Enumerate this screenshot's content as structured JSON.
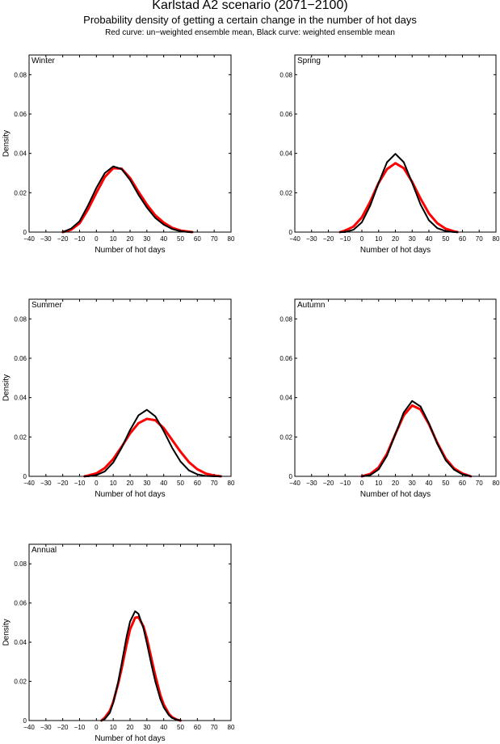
{
  "header": {
    "title": "Karlstad A2 scenario (2071−2100)",
    "subtitle": "Probability density of getting a certain change in the number of hot days",
    "legend_note": "Red curve: un−weighted ensemble mean, Black curve: weighted ensemble mean"
  },
  "colors": {
    "unweighted": "#ff0000",
    "weighted": "#000000"
  },
  "chart_data": [
    {
      "type": "line",
      "title": "Winter",
      "xlabel": "Number of hot days",
      "ylabel": "Density",
      "xlim": [
        -40,
        80
      ],
      "ylim": [
        0,
        0.09
      ],
      "xticks": [
        -40,
        -30,
        -20,
        -10,
        0,
        10,
        20,
        30,
        40,
        50,
        60,
        70,
        80
      ],
      "xtick_labels": [
        "−40",
        "−30",
        "−20",
        "−10",
        "0",
        "10",
        "20",
        "30",
        "40",
        "50",
        "60",
        "70",
        "80"
      ],
      "yticks": [
        0,
        0.02,
        0.04,
        0.06,
        0.08
      ],
      "ytick_labels": [
        "0",
        "0.02",
        "0.04",
        "0.06",
        "0.08"
      ],
      "show_ylabel": true,
      "x": [
        -20,
        -15,
        -10,
        -5,
        0,
        5,
        10,
        15,
        20,
        25,
        30,
        35,
        40,
        45,
        50,
        55,
        57
      ],
      "series": [
        {
          "name": "un-weighted ensemble mean",
          "color": "red",
          "values": [
            0.0,
            0.0012,
            0.0045,
            0.0115,
            0.02,
            0.028,
            0.0325,
            0.0322,
            0.0275,
            0.0205,
            0.014,
            0.0085,
            0.0048,
            0.0022,
            0.0008,
            0.0002,
            0.0
          ]
        },
        {
          "name": "weighted ensemble mean",
          "color": "black",
          "values": [
            0.0,
            0.0018,
            0.0055,
            0.0135,
            0.0225,
            0.03,
            0.0334,
            0.032,
            0.0265,
            0.019,
            0.0125,
            0.0072,
            0.0038,
            0.0016,
            0.0004,
            0.0,
            0.0
          ]
        }
      ]
    },
    {
      "type": "line",
      "title": "Spring",
      "xlabel": "Number of hot days",
      "ylabel": "",
      "xlim": [
        -40,
        80
      ],
      "ylim": [
        0,
        0.09
      ],
      "xticks": [
        -40,
        -30,
        -20,
        -10,
        0,
        10,
        20,
        30,
        40,
        50,
        60,
        70,
        80
      ],
      "xtick_labels": [
        "−40",
        "−30",
        "−20",
        "−10",
        "0",
        "10",
        "20",
        "30",
        "40",
        "50",
        "60",
        "70",
        "80"
      ],
      "yticks": [
        0,
        0.02,
        0.04,
        0.06,
        0.08
      ],
      "ytick_labels": [
        "0",
        "0.02",
        "0.04",
        "0.06",
        "0.08"
      ],
      "show_ylabel": false,
      "x": [
        -13,
        -10,
        -5,
        0,
        5,
        10,
        15,
        20,
        25,
        30,
        35,
        40,
        45,
        50,
        55,
        57
      ],
      "series": [
        {
          "name": "un-weighted ensemble mean",
          "color": "red",
          "values": [
            0.0,
            0.0008,
            0.0028,
            0.0075,
            0.0155,
            0.025,
            0.032,
            0.035,
            0.0325,
            0.0255,
            0.017,
            0.0095,
            0.0045,
            0.0017,
            0.0004,
            0.0
          ]
        },
        {
          "name": "weighted ensemble mean",
          "color": "black",
          "values": [
            0.0,
            0.0,
            0.0012,
            0.005,
            0.0135,
            0.025,
            0.0355,
            0.0398,
            0.0355,
            0.025,
            0.014,
            0.006,
            0.002,
            0.0005,
            0.0,
            0.0
          ]
        }
      ]
    },
    {
      "type": "line",
      "title": "Summer",
      "xlabel": "Number of hot days",
      "ylabel": "Density",
      "xlim": [
        -40,
        80
      ],
      "ylim": [
        0,
        0.09
      ],
      "xticks": [
        -40,
        -30,
        -20,
        -10,
        0,
        10,
        20,
        30,
        40,
        50,
        60,
        70,
        80
      ],
      "xtick_labels": [
        "−40",
        "−30",
        "−20",
        "−10",
        "0",
        "10",
        "20",
        "30",
        "40",
        "50",
        "60",
        "70",
        "80"
      ],
      "yticks": [
        0,
        0.02,
        0.04,
        0.06,
        0.08
      ],
      "ytick_labels": [
        "0",
        "0.02",
        "0.04",
        "0.06",
        "0.08"
      ],
      "show_ylabel": true,
      "x": [
        -7,
        -5,
        0,
        5,
        10,
        15,
        20,
        25,
        30,
        35,
        40,
        45,
        50,
        55,
        60,
        65,
        70,
        74
      ],
      "series": [
        {
          "name": "un-weighted ensemble mean",
          "color": "red",
          "values": [
            0.0,
            0.0004,
            0.0015,
            0.0042,
            0.0088,
            0.015,
            0.0218,
            0.027,
            0.0292,
            0.0285,
            0.0245,
            0.0185,
            0.0125,
            0.0072,
            0.0036,
            0.0014,
            0.0004,
            0.0
          ]
        },
        {
          "name": "weighted ensemble mean",
          "color": "black",
          "values": [
            0.0,
            0.0,
            0.0006,
            0.0025,
            0.007,
            0.0145,
            0.0235,
            0.031,
            0.0338,
            0.0305,
            0.023,
            0.0145,
            0.0075,
            0.003,
            0.001,
            0.0002,
            0.0,
            0.0
          ]
        }
      ]
    },
    {
      "type": "line",
      "title": "Autumn",
      "xlabel": "Number of hot days",
      "ylabel": "",
      "xlim": [
        -40,
        80
      ],
      "ylim": [
        0,
        0.09
      ],
      "xticks": [
        -40,
        -30,
        -20,
        -10,
        0,
        10,
        20,
        30,
        40,
        50,
        60,
        70,
        80
      ],
      "xtick_labels": [
        "−40",
        "−30",
        "−20",
        "−10",
        "0",
        "10",
        "20",
        "30",
        "40",
        "50",
        "60",
        "70",
        "80"
      ],
      "yticks": [
        0,
        0.02,
        0.04,
        0.06,
        0.08
      ],
      "ytick_labels": [
        "0",
        "0.02",
        "0.04",
        "0.06",
        "0.08"
      ],
      "show_ylabel": false,
      "x": [
        0,
        5,
        10,
        15,
        20,
        25,
        30,
        35,
        40,
        45,
        50,
        55,
        60,
        65
      ],
      "series": [
        {
          "name": "un-weighted ensemble mean",
          "color": "red",
          "values": [
            0.0,
            0.0012,
            0.0045,
            0.0115,
            0.0215,
            0.031,
            0.036,
            0.034,
            0.0265,
            0.017,
            0.009,
            0.004,
            0.0014,
            0.0
          ]
        },
        {
          "name": "weighted ensemble mean",
          "color": "black",
          "values": [
            0.0,
            0.0006,
            0.0035,
            0.0105,
            0.0215,
            0.0325,
            0.0383,
            0.0355,
            0.027,
            0.0165,
            0.0082,
            0.0034,
            0.001,
            0.0
          ]
        }
      ]
    },
    {
      "type": "line",
      "title": "Annual",
      "xlabel": "Number of hot days",
      "ylabel": "Density",
      "xlim": [
        -40,
        80
      ],
      "ylim": [
        0,
        0.09
      ],
      "xticks": [
        -40,
        -30,
        -20,
        -10,
        0,
        10,
        20,
        30,
        40,
        50,
        60,
        70,
        80
      ],
      "xtick_labels": [
        "−40",
        "−30",
        "−20",
        "−10",
        "0",
        "10",
        "20",
        "30",
        "40",
        "50",
        "60",
        "70",
        "80"
      ],
      "yticks": [
        0,
        0.02,
        0.04,
        0.06,
        0.08
      ],
      "ytick_labels": [
        "0",
        "0.02",
        "0.04",
        "0.06",
        "0.08"
      ],
      "show_ylabel": true,
      "x": [
        3,
        5,
        8,
        10,
        13,
        15,
        18,
        20,
        23,
        25,
        28,
        30,
        33,
        35,
        38,
        40,
        43,
        45,
        48,
        50
      ],
      "series": [
        {
          "name": "un-weighted ensemble mean",
          "color": "red",
          "values": [
            0.0,
            0.0015,
            0.005,
            0.0095,
            0.019,
            0.0265,
            0.039,
            0.0465,
            0.0525,
            0.0528,
            0.048,
            0.042,
            0.0305,
            0.023,
            0.013,
            0.0082,
            0.0035,
            0.0017,
            0.0004,
            0.0
          ]
        },
        {
          "name": "weighted ensemble mean",
          "color": "black",
          "values": [
            0.0,
            0.0008,
            0.004,
            0.009,
            0.02,
            0.029,
            0.043,
            0.0505,
            0.0558,
            0.0545,
            0.047,
            0.0395,
            0.0275,
            0.02,
            0.011,
            0.0068,
            0.0028,
            0.0013,
            0.0004,
            0.0
          ]
        }
      ]
    }
  ]
}
